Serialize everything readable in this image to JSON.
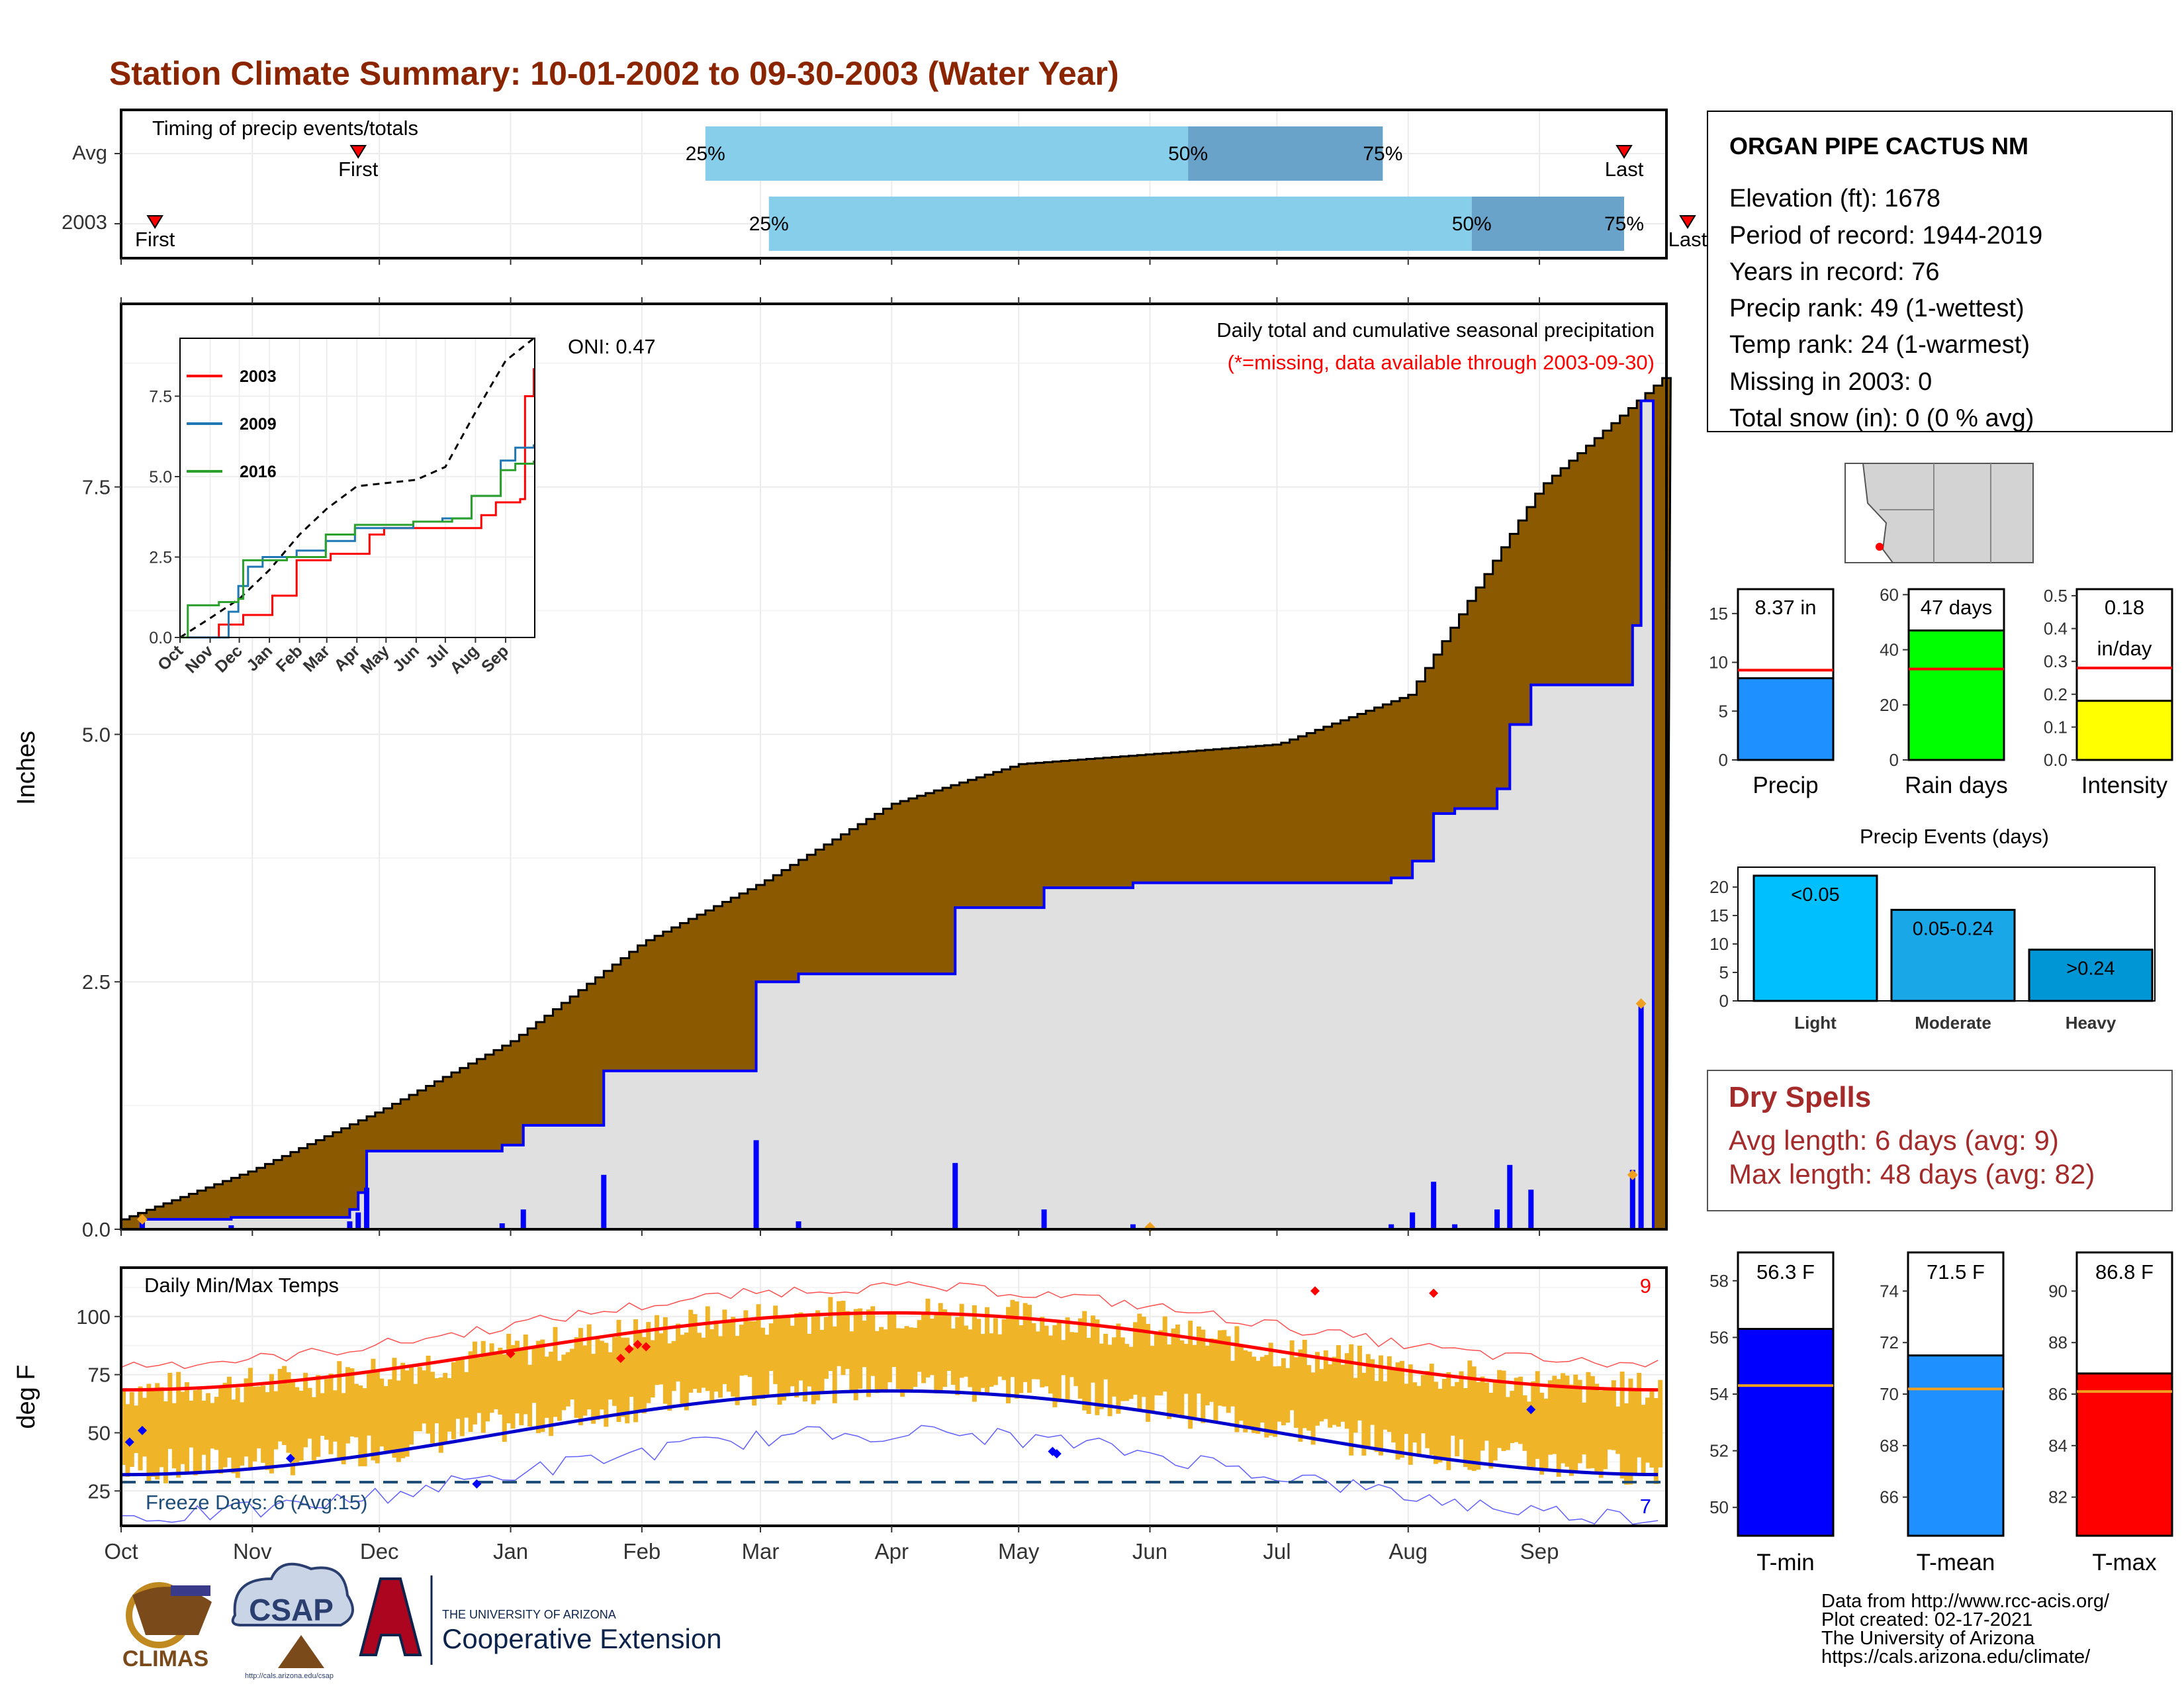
{
  "title": "Station Climate Summary: 10-01-2002 to 09-30-2003 (Water Year)",
  "month_ticks": [
    "Oct",
    "Nov",
    "Dec",
    "Jan",
    "Feb",
    "Mar",
    "Apr",
    "May",
    "Jun",
    "Jul",
    "Aug",
    "Sep"
  ],
  "colors": {
    "title": "#8b2500",
    "brown": "#8b5a00",
    "grey_fill": "#e0e0e0",
    "blue": "#0000ff",
    "light_blue": "#87ceeb",
    "steel_blue": "#6aa3c9",
    "red": "#ff0000",
    "orange": "#f0b429",
    "green": "#00ff00",
    "yellow": "#ffff00",
    "sky": "#00bfff",
    "dodger": "#1e90ff",
    "dry_spells": "#a52a2a"
  },
  "timing_panel": {
    "title": "Timing of precip events/totals",
    "rows": [
      {
        "label": "Avg",
        "first_label": "First",
        "last_label": "Last",
        "p25_label": "25%",
        "p50_label": "50%",
        "p75_label": "75%",
        "first": "Nov",
        "p25": "Feb",
        "p50": "May",
        "p75": "Jul",
        "last": "Sep"
      },
      {
        "label": "2003",
        "first_label": "First",
        "last_label": "Last",
        "p25_label": "25%",
        "p50_label": "50%",
        "p75_label": "75%",
        "first": "Oct",
        "p25": "Feb",
        "p50": "Aug",
        "p75": "Sep",
        "last": "Sep"
      }
    ]
  },
  "precip_panel": {
    "ylabel": "Inches",
    "yticks": [
      "0.0",
      "2.5",
      "5.0",
      "7.5"
    ],
    "title_line1": "Daily total and cumulative seasonal precipitation",
    "title_line2": "(*=missing, data available through 2003-09-30)",
    "oni": "ONI: 0.47"
  },
  "inset": {
    "yticks": [
      "0.0",
      "2.5",
      "5.0",
      "7.5"
    ],
    "xticks": [
      "Oct",
      "Nov",
      "Dec",
      "Jan",
      "Feb",
      "Mar",
      "Apr",
      "May",
      "Jun",
      "Jul",
      "Aug",
      "Sep"
    ],
    "legend": [
      {
        "name": "2003",
        "color": "#ff0000"
      },
      {
        "name": "2009",
        "color": "#1f77b4"
      },
      {
        "name": "2016",
        "color": "#2ca02c"
      }
    ]
  },
  "temp_panel": {
    "ylabel": "deg F",
    "yticks": [
      "25",
      "50",
      "75",
      "100"
    ],
    "title": "Daily Min/Max Temps",
    "freeze_label": "Freeze Days: 6 (Avg:15)",
    "record_high_count": "9",
    "record_low_count": "7"
  },
  "station": {
    "name": "ORGAN PIPE CACTUS NM",
    "lines": [
      "Elevation (ft): 1678",
      "Period of record: 1944-2019",
      "Years in record: 76",
      "Precip rank: 49 (1-wettest)",
      "Temp rank: 24 (1-warmest)",
      "Missing in 2003: 0",
      "Total snow (in): 0 (0 % avg)"
    ]
  },
  "small_bars": [
    {
      "label": "Precip",
      "value_text": "8.37 in",
      "value": 8.37,
      "avg": 9.2,
      "ymax": 17.5,
      "yticks": [
        "0",
        "5",
        "10",
        "15"
      ],
      "color": "#1e90ff"
    },
    {
      "label": "Rain days",
      "value_text": "47 days",
      "value": 47,
      "avg": 33,
      "ymax": 62,
      "yticks": [
        "0",
        "20",
        "40",
        "60"
      ],
      "color": "#00ff00"
    },
    {
      "label": "Intensity",
      "value_text": "0.18",
      "value_text2": "in/day",
      "value": 0.18,
      "avg": 0.28,
      "ymax": 0.52,
      "yticks": [
        "0.0",
        "0.1",
        "0.2",
        "0.3",
        "0.4",
        "0.5"
      ],
      "color": "#ffff00"
    }
  ],
  "events": {
    "title": "Precip Events (days)",
    "yticks": [
      "0",
      "5",
      "10",
      "15",
      "20"
    ],
    "bars": [
      {
        "label": "Light",
        "value_text": "<0.05",
        "value": 22,
        "color": "#00bfff"
      },
      {
        "label": "Moderate",
        "value_text": "0.05-0.24",
        "value": 16,
        "color": "#1aa7e8"
      },
      {
        "label": "Heavy",
        "value_text": ">0.24",
        "value": 9,
        "color": "#0096d6"
      }
    ]
  },
  "dry_spells": {
    "title": "Dry Spells",
    "avg": "Avg length: 6 days (avg: 9)",
    "max": "Max length: 48 days (avg: 82)"
  },
  "temp_bars": [
    {
      "label": "T-min",
      "value_text": "56.3 F",
      "value": 56.3,
      "avg": 54.3,
      "ymin": 49,
      "ymax": 59,
      "yticks": [
        "50",
        "52",
        "54",
        "56",
        "58"
      ],
      "tickvals": [
        50,
        52,
        54,
        56,
        58
      ],
      "color": "#0000ff"
    },
    {
      "label": "T-mean",
      "value_text": "71.5 F",
      "value": 71.5,
      "avg": 70.2,
      "ymin": 64.5,
      "ymax": 75.5,
      "yticks": [
        "66",
        "68",
        "70",
        "72",
        "74"
      ],
      "tickvals": [
        66,
        68,
        70,
        72,
        74
      ],
      "color": "#1e90ff"
    },
    {
      "label": "T-max",
      "value_text": "86.8 F",
      "value": 86.8,
      "avg": 86.1,
      "ymin": 80.5,
      "ymax": 91.5,
      "yticks": [
        "82",
        "84",
        "86",
        "88",
        "90"
      ],
      "tickvals": [
        82,
        84,
        86,
        88,
        90
      ],
      "color": "#ff0000"
    }
  ],
  "footer": {
    "lines": [
      "Data from http://www.rcc-acis.org/",
      "Plot created: 02-17-2021",
      "The University of Arizona",
      "https://cals.arizona.edu/climate/"
    ],
    "climas": "CLIMAS",
    "csap": "CSAP",
    "csap_url": "http://cals.arizona.edu/csap",
    "ua_top": "THE UNIVERSITY OF ARIZONA",
    "ua_bottom": "Cooperative Extension"
  }
}
